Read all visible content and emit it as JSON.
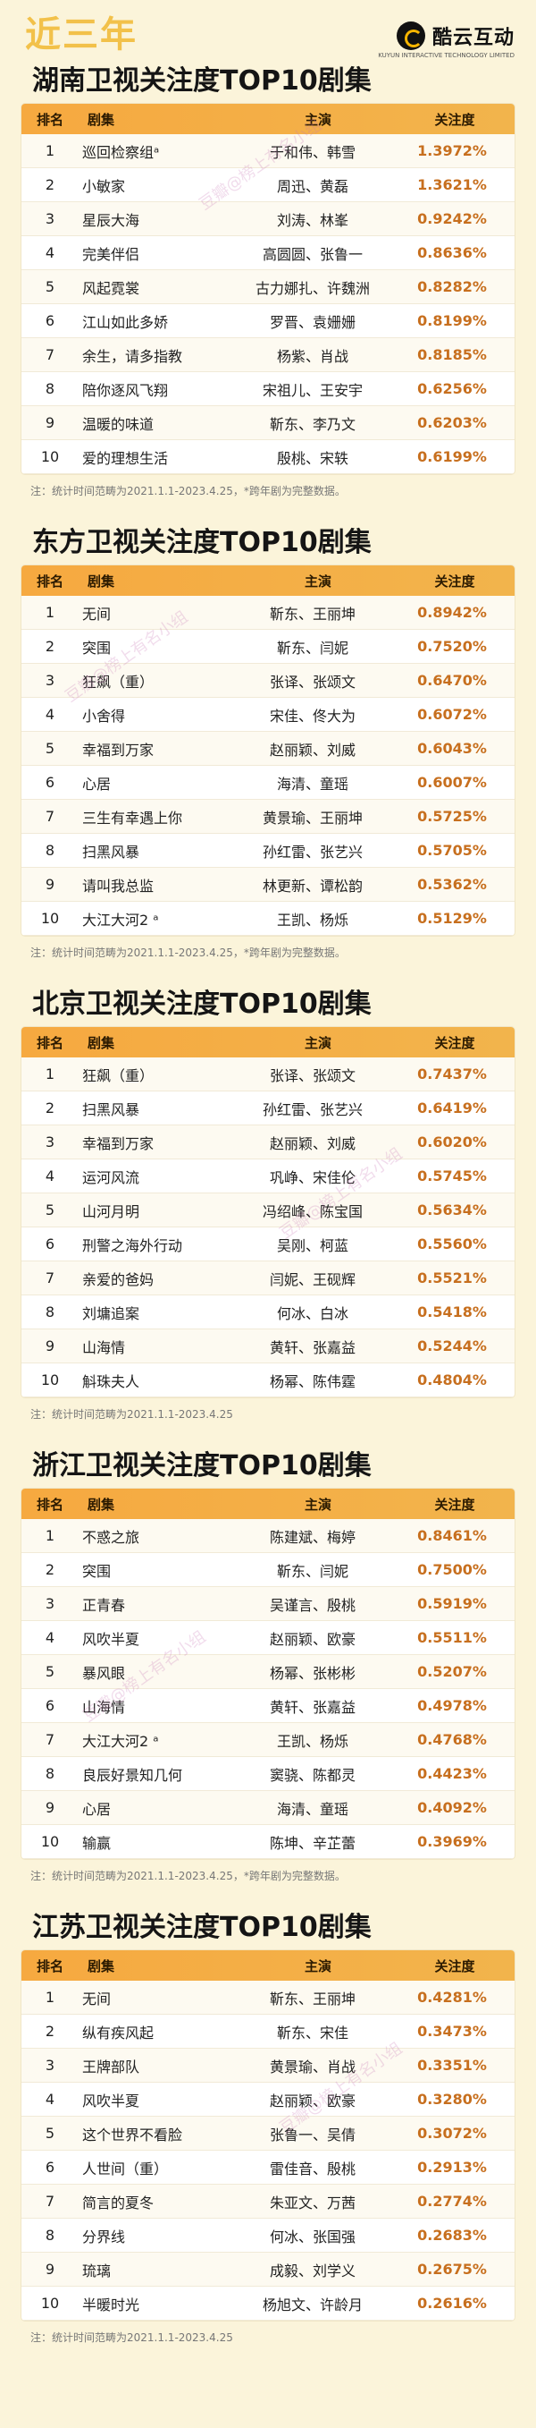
{
  "header": {
    "kicker": "近三年",
    "logo_text": "酷云互动",
    "logo_sub": "KUYUN INTERACTIVE TECHNOLOGY LIMITED"
  },
  "columns": {
    "rank": "排名",
    "title": "剧集",
    "cast": "主演",
    "score": "关注度"
  },
  "sections": [
    {
      "title": "湖南卫视关注度TOP10剧集",
      "note": "注：统计时间范畴为2021.1.1-2023.4.25，*跨年剧为完整数据。",
      "rows": [
        {
          "rank": "1",
          "title": "巡回检察组ᵃ",
          "cast": "于和伟、韩雪",
          "score": "1.3972%"
        },
        {
          "rank": "2",
          "title": "小敏家",
          "cast": "周迅、黄磊",
          "score": "1.3621%"
        },
        {
          "rank": "3",
          "title": "星辰大海",
          "cast": "刘涛、林峯",
          "score": "0.9242%"
        },
        {
          "rank": "4",
          "title": "完美伴侣",
          "cast": "高圆圆、张鲁一",
          "score": "0.8636%"
        },
        {
          "rank": "5",
          "title": "风起霓裳",
          "cast": "古力娜扎、许魏洲",
          "score": "0.8282%"
        },
        {
          "rank": "6",
          "title": "江山如此多娇",
          "cast": "罗晋、袁姗姗",
          "score": "0.8199%"
        },
        {
          "rank": "7",
          "title": "余生，请多指教",
          "cast": "杨紫、肖战",
          "score": "0.8185%"
        },
        {
          "rank": "8",
          "title": "陪你逐风飞翔",
          "cast": "宋祖儿、王安宇",
          "score": "0.6256%"
        },
        {
          "rank": "9",
          "title": "温暖的味道",
          "cast": "靳东、李乃文",
          "score": "0.6203%"
        },
        {
          "rank": "10",
          "title": "爱的理想生活",
          "cast": "殷桃、宋轶",
          "score": "0.6199%"
        }
      ]
    },
    {
      "title": "东方卫视关注度TOP10剧集",
      "note": "注：统计时间范畴为2021.1.1-2023.4.25，*跨年剧为完整数据。",
      "rows": [
        {
          "rank": "1",
          "title": "无间",
          "cast": "靳东、王丽坤",
          "score": "0.8942%"
        },
        {
          "rank": "2",
          "title": "突围",
          "cast": "靳东、闫妮",
          "score": "0.7520%"
        },
        {
          "rank": "3",
          "title": "狂飙（重）",
          "cast": "张译、张颂文",
          "score": "0.6470%"
        },
        {
          "rank": "4",
          "title": "小舍得",
          "cast": "宋佳、佟大为",
          "score": "0.6072%"
        },
        {
          "rank": "5",
          "title": "幸福到万家",
          "cast": "赵丽颖、刘威",
          "score": "0.6043%"
        },
        {
          "rank": "6",
          "title": "心居",
          "cast": "海清、童瑶",
          "score": "0.6007%"
        },
        {
          "rank": "7",
          "title": "三生有幸遇上你",
          "cast": "黄景瑜、王丽坤",
          "score": "0.5725%"
        },
        {
          "rank": "8",
          "title": "扫黑风暴",
          "cast": "孙红雷、张艺兴",
          "score": "0.5705%"
        },
        {
          "rank": "9",
          "title": "请叫我总监",
          "cast": "林更新、谭松韵",
          "score": "0.5362%"
        },
        {
          "rank": "10",
          "title": "大江大河2 ᵃ",
          "cast": "王凯、杨烁",
          "score": "0.5129%"
        }
      ]
    },
    {
      "title": "北京卫视关注度TOP10剧集",
      "note": "注：统计时间范畴为2021.1.1-2023.4.25",
      "rows": [
        {
          "rank": "1",
          "title": "狂飙（重）",
          "cast": "张译、张颂文",
          "score": "0.7437%"
        },
        {
          "rank": "2",
          "title": "扫黑风暴",
          "cast": "孙红雷、张艺兴",
          "score": "0.6419%"
        },
        {
          "rank": "3",
          "title": "幸福到万家",
          "cast": "赵丽颖、刘威",
          "score": "0.6020%"
        },
        {
          "rank": "4",
          "title": "运河风流",
          "cast": "巩峥、宋佳伦",
          "score": "0.5745%"
        },
        {
          "rank": "5",
          "title": "山河月明",
          "cast": "冯绍峰、陈宝国",
          "score": "0.5634%"
        },
        {
          "rank": "6",
          "title": "刑警之海外行动",
          "cast": "吴刚、柯蓝",
          "score": "0.5560%"
        },
        {
          "rank": "7",
          "title": "亲爱的爸妈",
          "cast": "闫妮、王砚辉",
          "score": "0.5521%"
        },
        {
          "rank": "8",
          "title": "刘墉追案",
          "cast": "何冰、白冰",
          "score": "0.5418%"
        },
        {
          "rank": "9",
          "title": "山海情",
          "cast": "黄轩、张嘉益",
          "score": "0.5244%"
        },
        {
          "rank": "10",
          "title": "斛珠夫人",
          "cast": "杨幂、陈伟霆",
          "score": "0.4804%"
        }
      ]
    },
    {
      "title": "浙江卫视关注度TOP10剧集",
      "note": "注：统计时间范畴为2021.1.1-2023.4.25，*跨年剧为完整数据。",
      "rows": [
        {
          "rank": "1",
          "title": "不惑之旅",
          "cast": "陈建斌、梅婷",
          "score": "0.8461%"
        },
        {
          "rank": "2",
          "title": "突围",
          "cast": "靳东、闫妮",
          "score": "0.7500%"
        },
        {
          "rank": "3",
          "title": "正青春",
          "cast": "吴谨言、殷桃",
          "score": "0.5919%"
        },
        {
          "rank": "4",
          "title": "风吹半夏",
          "cast": "赵丽颖、欧豪",
          "score": "0.5511%"
        },
        {
          "rank": "5",
          "title": "暴风眼",
          "cast": "杨幂、张彬彬",
          "score": "0.5207%"
        },
        {
          "rank": "6",
          "title": "山海情",
          "cast": "黄轩、张嘉益",
          "score": "0.4978%"
        },
        {
          "rank": "7",
          "title": "大江大河2 ᵃ",
          "cast": "王凯、杨烁",
          "score": "0.4768%"
        },
        {
          "rank": "8",
          "title": "良辰好景知几何",
          "cast": "窦骁、陈都灵",
          "score": "0.4423%"
        },
        {
          "rank": "9",
          "title": "心居",
          "cast": "海清、童瑶",
          "score": "0.4092%"
        },
        {
          "rank": "10",
          "title": "输赢",
          "cast": "陈坤、辛芷蕾",
          "score": "0.3969%"
        }
      ]
    },
    {
      "title": "江苏卫视关注度TOP10剧集",
      "note": "注：统计时间范畴为2021.1.1-2023.4.25",
      "rows": [
        {
          "rank": "1",
          "title": "无间",
          "cast": "靳东、王丽坤",
          "score": "0.4281%"
        },
        {
          "rank": "2",
          "title": "纵有疾风起",
          "cast": "靳东、宋佳",
          "score": "0.3473%"
        },
        {
          "rank": "3",
          "title": "王牌部队",
          "cast": "黄景瑜、肖战",
          "score": "0.3351%"
        },
        {
          "rank": "4",
          "title": "风吹半夏",
          "cast": "赵丽颖、欧豪",
          "score": "0.3280%"
        },
        {
          "rank": "5",
          "title": "这个世界不看脸",
          "cast": "张鲁一、吴倩",
          "score": "0.3072%"
        },
        {
          "rank": "6",
          "title": "人世间（重）",
          "cast": "雷佳音、殷桃",
          "score": "0.2913%"
        },
        {
          "rank": "7",
          "title": "简言的夏冬",
          "cast": "朱亚文、万茜",
          "score": "0.2774%"
        },
        {
          "rank": "8",
          "title": "分界线",
          "cast": "何冰、张国强",
          "score": "0.2683%"
        },
        {
          "rank": "9",
          "title": "琉璃",
          "cast": "成毅、刘学义",
          "score": "0.2675%"
        },
        {
          "rank": "10",
          "title": "半暖时光",
          "cast": "杨旭文、许龄月",
          "score": "0.2616%"
        }
      ]
    }
  ]
}
